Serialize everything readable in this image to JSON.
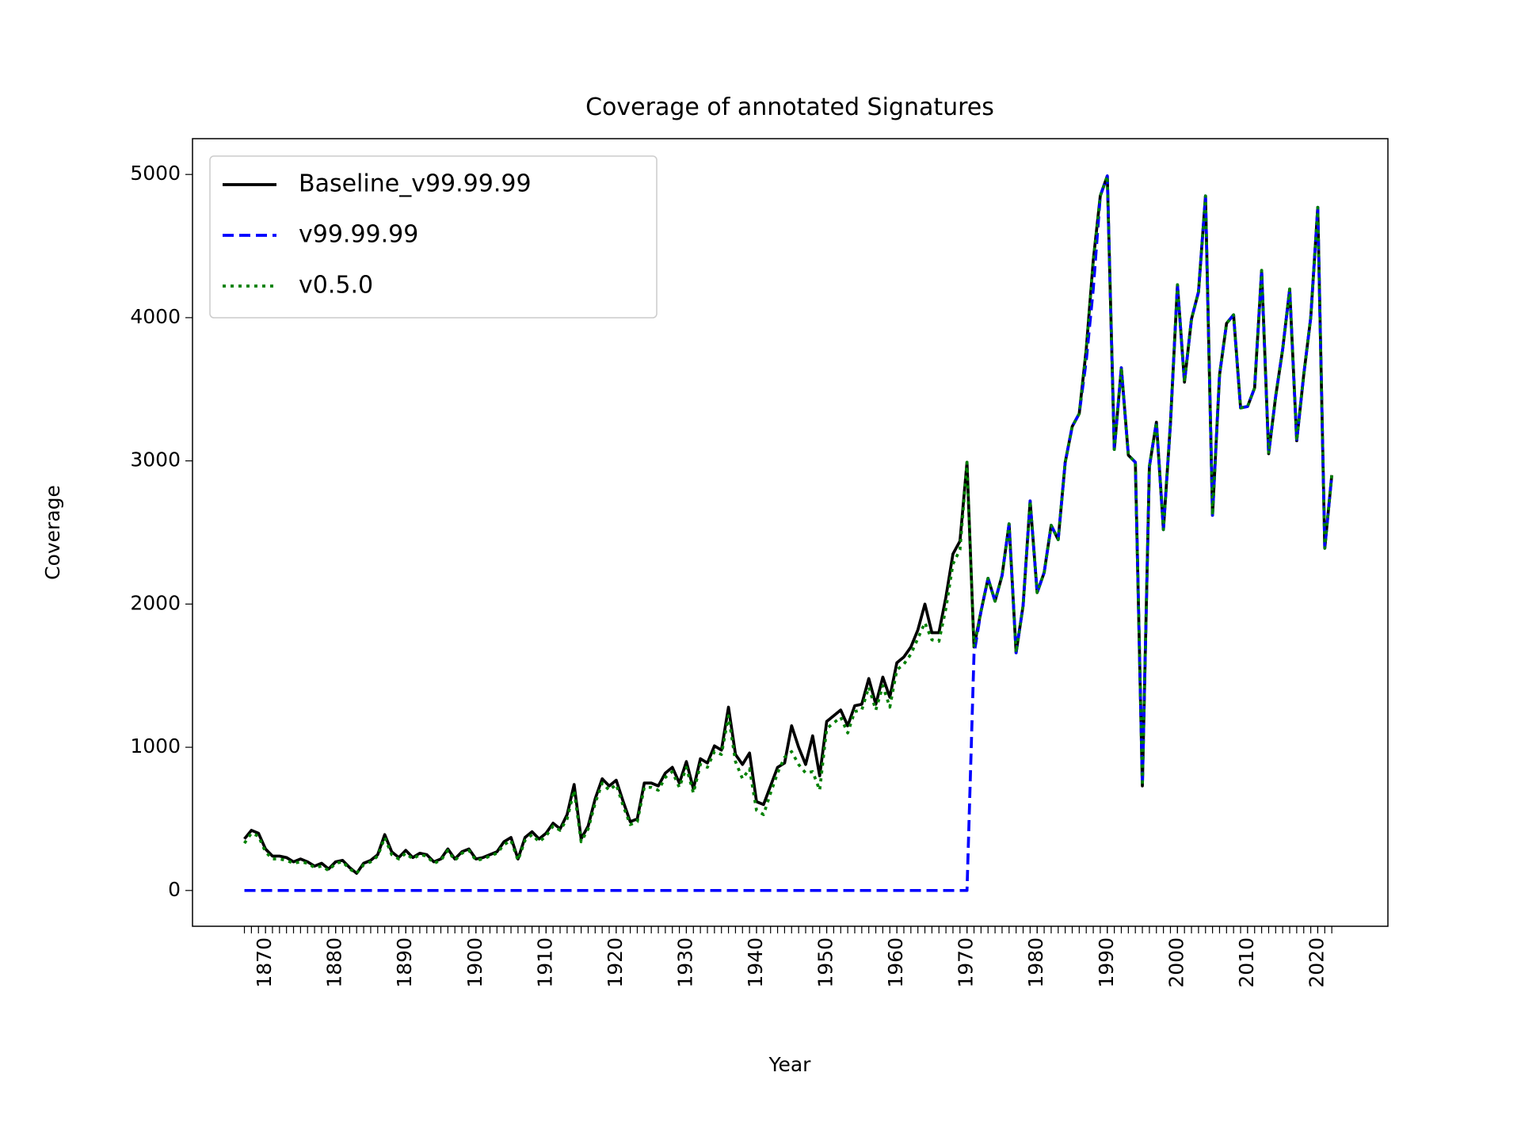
{
  "chart_data": {
    "type": "line",
    "title": "Coverage of annotated Signatures",
    "xlabel": "Year",
    "ylabel": "Coverage",
    "x": [
      1867,
      1868,
      1869,
      1870,
      1871,
      1872,
      1873,
      1874,
      1875,
      1876,
      1877,
      1878,
      1879,
      1880,
      1881,
      1882,
      1883,
      1884,
      1885,
      1886,
      1887,
      1888,
      1889,
      1890,
      1891,
      1892,
      1893,
      1894,
      1895,
      1896,
      1897,
      1898,
      1899,
      1900,
      1901,
      1902,
      1903,
      1904,
      1905,
      1906,
      1907,
      1908,
      1909,
      1910,
      1911,
      1912,
      1913,
      1914,
      1915,
      1916,
      1917,
      1918,
      1919,
      1920,
      1921,
      1922,
      1923,
      1924,
      1925,
      1926,
      1927,
      1928,
      1929,
      1930,
      1931,
      1932,
      1933,
      1934,
      1935,
      1936,
      1937,
      1938,
      1939,
      1940,
      1941,
      1942,
      1943,
      1944,
      1945,
      1946,
      1947,
      1948,
      1949,
      1950,
      1951,
      1952,
      1953,
      1954,
      1955,
      1956,
      1957,
      1958,
      1959,
      1960,
      1961,
      1962,
      1963,
      1964,
      1965,
      1966,
      1967,
      1968,
      1969,
      1970,
      1971,
      1972,
      1973,
      1974,
      1975,
      1976,
      1977,
      1978,
      1979,
      1980,
      1981,
      1982,
      1983,
      1984,
      1985,
      1986,
      1987,
      1988,
      1989,
      1990,
      1991,
      1992,
      1993,
      1994,
      1995,
      1996,
      1997,
      1998,
      1999,
      2000,
      2001,
      2002,
      2003,
      2004,
      2005,
      2006,
      2007,
      2008,
      2009,
      2010,
      2011,
      2012,
      2013,
      2014,
      2015,
      2016,
      2017,
      2018,
      2019,
      2020,
      2021,
      2022
    ],
    "series": [
      {
        "name": "Baseline_v99.99.99",
        "color": "#000000",
        "dash": "solid",
        "values": [
          360,
          420,
          400,
          290,
          240,
          240,
          230,
          200,
          220,
          200,
          170,
          190,
          150,
          200,
          210,
          160,
          120,
          190,
          210,
          250,
          390,
          270,
          230,
          280,
          230,
          260,
          250,
          200,
          220,
          290,
          220,
          270,
          290,
          220,
          230,
          250,
          270,
          340,
          370,
          220,
          370,
          410,
          360,
          400,
          470,
          430,
          530,
          740,
          360,
          450,
          640,
          780,
          730,
          770,
          620,
          480,
          500,
          750,
          750,
          730,
          820,
          860,
          750,
          900,
          710,
          920,
          890,
          1010,
          980,
          1280,
          950,
          880,
          960,
          620,
          600,
          730,
          860,
          890,
          1150,
          1000,
          880,
          1080,
          800,
          1180,
          1220,
          1260,
          1150,
          1290,
          1300,
          1480,
          1300,
          1490,
          1350,
          1590,
          1630,
          1700,
          1820,
          2000,
          1800,
          1800,
          2050,
          2350,
          2440,
          2990,
          1700,
          1950,
          2180,
          2020,
          2200,
          2560,
          1660,
          1990,
          2720,
          2080,
          2220,
          2550,
          2450,
          2990,
          3240,
          3330,
          3780,
          4400,
          4850,
          4990,
          3080,
          3650,
          3040,
          2990,
          730,
          2960,
          3270,
          2520,
          3260,
          4230,
          3550,
          3990,
          4180,
          4850,
          2620,
          3600,
          3960,
          4020,
          3370,
          3380,
          3510,
          4330,
          3050,
          3450,
          3780,
          4200,
          3140,
          3600,
          4000,
          4770,
          2390,
          2900
        ]
      },
      {
        "name": "v99.99.99",
        "color": "#0000ff",
        "dash": "dashed",
        "values": [
          0,
          0,
          0,
          0,
          0,
          0,
          0,
          0,
          0,
          0,
          0,
          0,
          0,
          0,
          0,
          0,
          0,
          0,
          0,
          0,
          0,
          0,
          0,
          0,
          0,
          0,
          0,
          0,
          0,
          0,
          0,
          0,
          0,
          0,
          0,
          0,
          0,
          0,
          0,
          0,
          0,
          0,
          0,
          0,
          0,
          0,
          0,
          0,
          0,
          0,
          0,
          0,
          0,
          0,
          0,
          0,
          0,
          0,
          0,
          0,
          0,
          0,
          0,
          0,
          0,
          0,
          0,
          0,
          0,
          0,
          0,
          0,
          0,
          0,
          0,
          0,
          0,
          0,
          0,
          0,
          0,
          0,
          0,
          0,
          0,
          0,
          0,
          0,
          0,
          0,
          0,
          0,
          0,
          0,
          0,
          0,
          0,
          0,
          0,
          0,
          0,
          0,
          0,
          0,
          1650,
          1950,
          2180,
          2020,
          2200,
          2560,
          1660,
          1990,
          2720,
          2080,
          2220,
          2550,
          2450,
          2990,
          3240,
          3330,
          3700,
          4200,
          4850,
          4990,
          3080,
          3650,
          3040,
          2990,
          730,
          2960,
          3270,
          2520,
          3260,
          4230,
          3550,
          3990,
          4180,
          4850,
          2620,
          3600,
          3960,
          4020,
          3370,
          3380,
          3510,
          4330,
          3050,
          3450,
          3780,
          4200,
          3140,
          3600,
          4000,
          4770,
          2390,
          2900
        ]
      },
      {
        "name": "v0.5.0",
        "color": "#008000",
        "dash": "dotted",
        "values": [
          330,
          400,
          380,
          270,
          220,
          220,
          210,
          190,
          200,
          190,
          160,
          170,
          140,
          190,
          200,
          150,
          120,
          180,
          200,
          240,
          370,
          250,
          220,
          260,
          220,
          250,
          240,
          190,
          210,
          280,
          210,
          260,
          280,
          210,
          220,
          240,
          260,
          320,
          350,
          210,
          350,
          390,
          340,
          380,
          450,
          420,
          500,
          700,
          340,
          430,
          610,
          750,
          700,
          740,
          590,
          460,
          480,
          720,
          720,
          700,
          790,
          830,
          720,
          860,
          680,
          880,
          860,
          970,
          950,
          1220,
          900,
          780,
          850,
          560,
          530,
          680,
          820,
          930,
          970,
          880,
          820,
          830,
          700,
          1130,
          1170,
          1210,
          1100,
          1250,
          1260,
          1420,
          1260,
          1430,
          1280,
          1540,
          1580,
          1650,
          1760,
          1870,
          1750,
          1740,
          1970,
          2280,
          2380,
          2990,
          1700,
          1950,
          2180,
          2020,
          2200,
          2560,
          1660,
          1990,
          2720,
          2080,
          2220,
          2550,
          2450,
          2990,
          3240,
          3330,
          3780,
          4400,
          4850,
          4990,
          3080,
          3650,
          3040,
          2990,
          730,
          2960,
          3270,
          2520,
          3260,
          4230,
          3550,
          3990,
          4180,
          4850,
          2620,
          3600,
          3960,
          4020,
          3370,
          3380,
          3510,
          4330,
          3050,
          3450,
          3780,
          4200,
          3140,
          3600,
          4000,
          4770,
          2390,
          2900
        ]
      }
    ],
    "xlim": [
      1859.6,
      2030
    ],
    "ylim": [
      -250,
      5250
    ],
    "xticks": [
      1870,
      1880,
      1890,
      1900,
      1910,
      1920,
      1930,
      1940,
      1950,
      1960,
      1970,
      1980,
      1990,
      2000,
      2010,
      2020
    ],
    "yticks": [
      0,
      1000,
      2000,
      3000,
      4000,
      5000
    ],
    "legend": "upper left",
    "grid": false
  }
}
